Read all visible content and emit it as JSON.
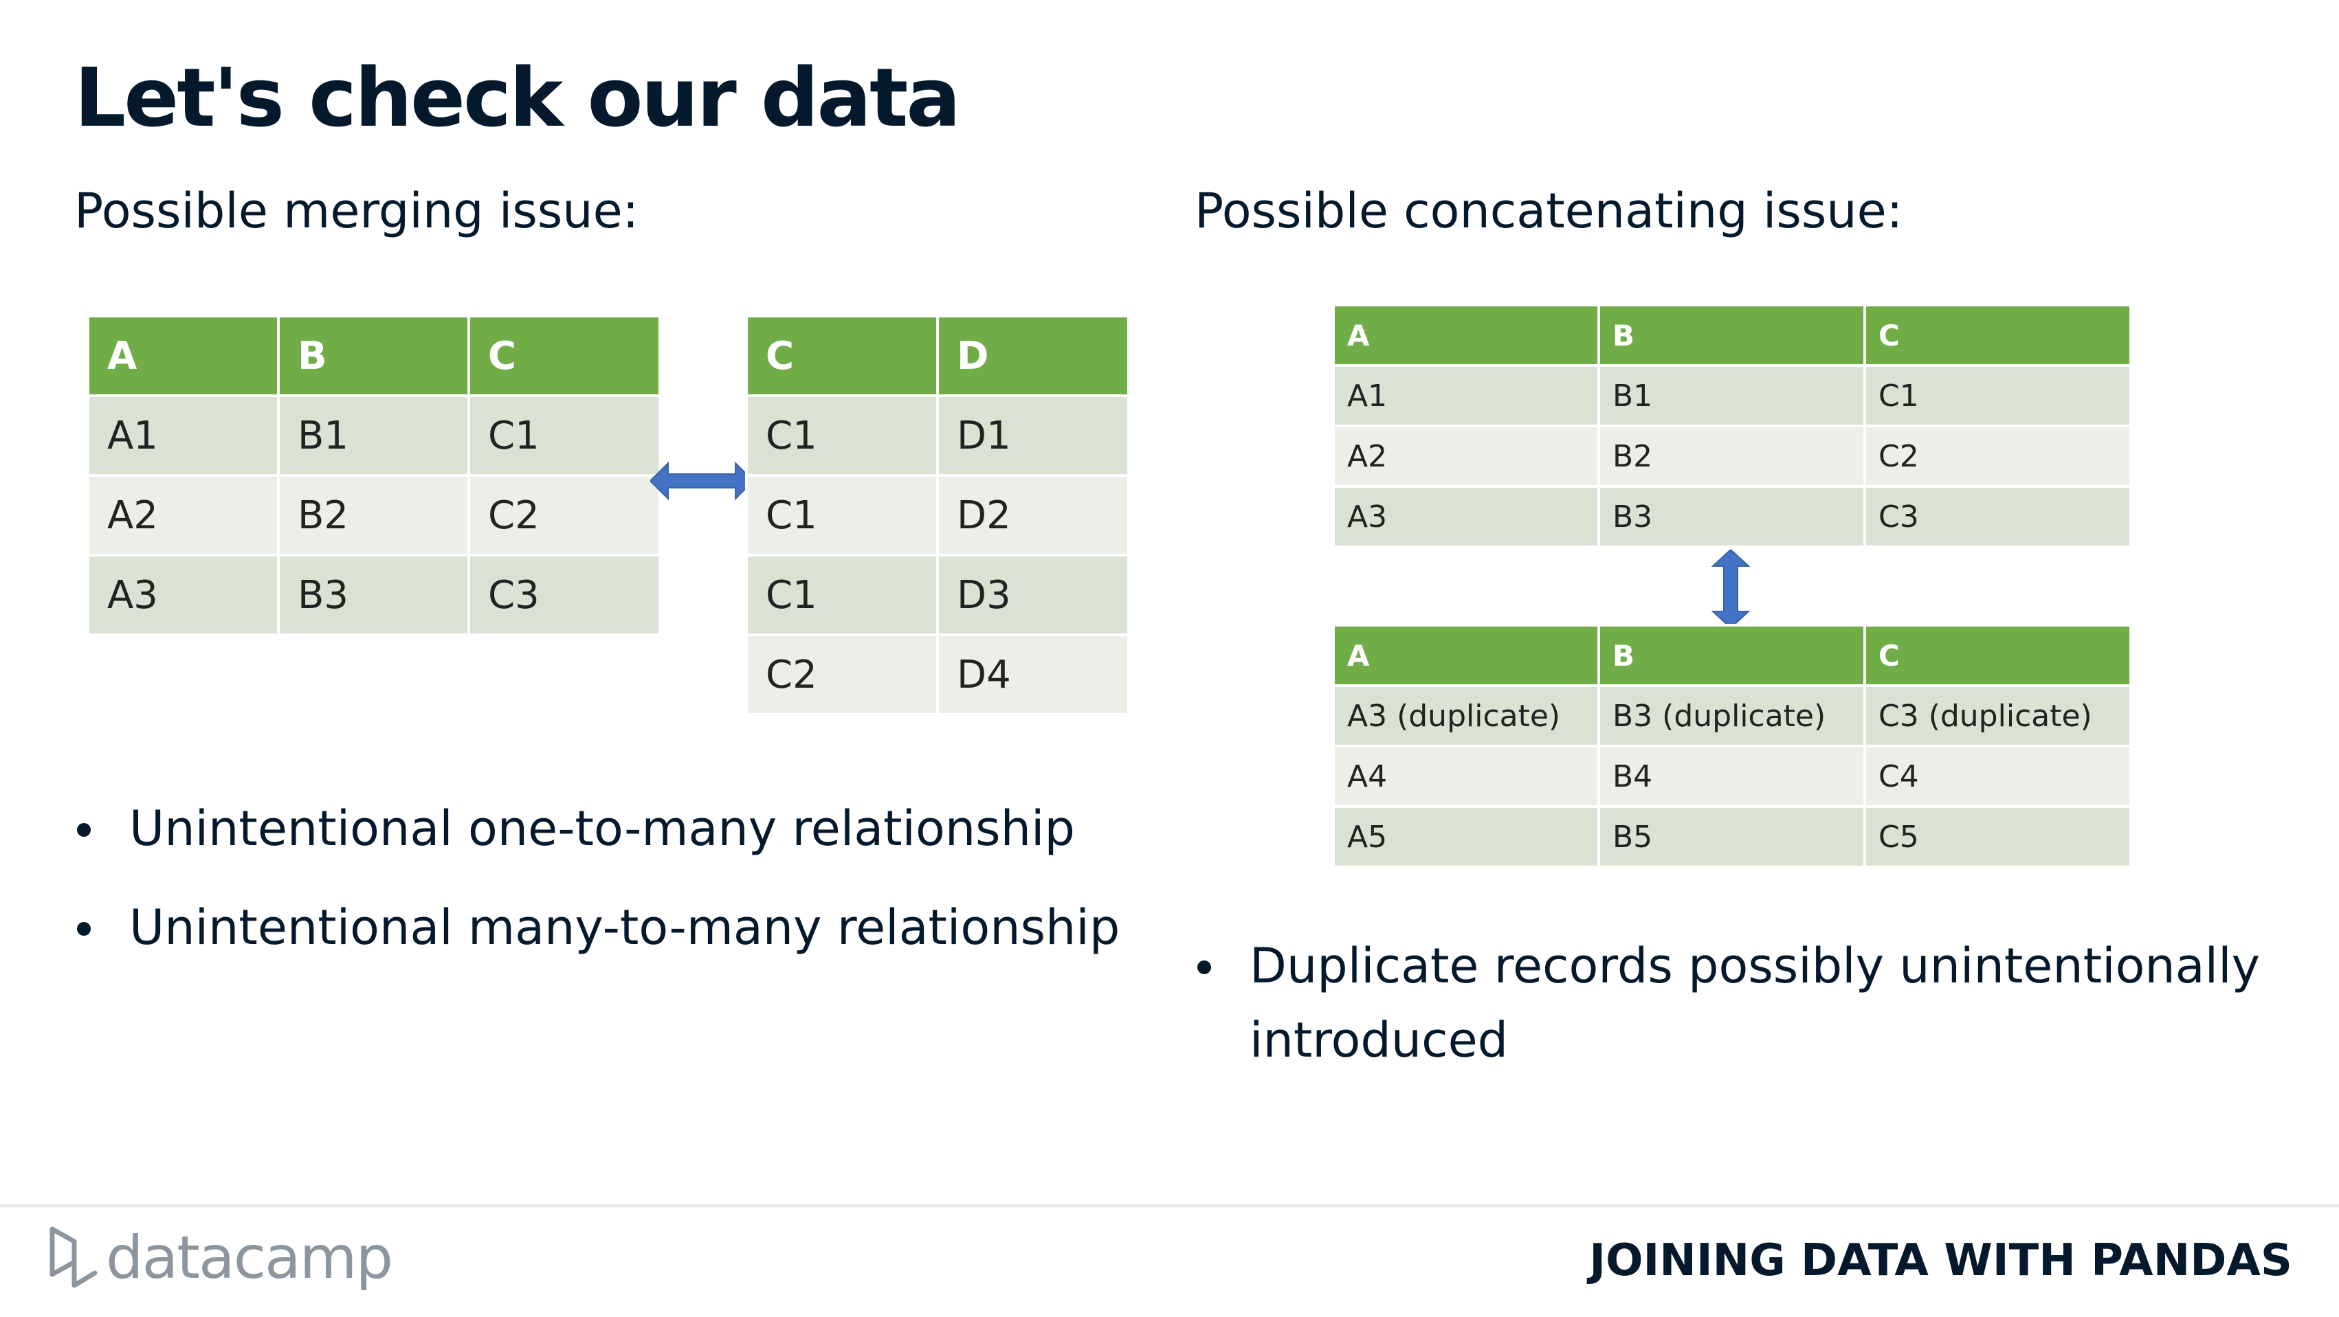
{
  "title": "Let's check our data",
  "left": {
    "heading": "Possible merging issue:",
    "table_left": {
      "headers": [
        "A",
        "B",
        "C"
      ],
      "rows": [
        [
          "A1",
          "B1",
          "C1"
        ],
        [
          "A2",
          "B2",
          "C2"
        ],
        [
          "A3",
          "B3",
          "C3"
        ]
      ]
    },
    "table_right": {
      "headers": [
        "C",
        "D"
      ],
      "rows": [
        [
          "C1",
          "D1"
        ],
        [
          "C1",
          "D2"
        ],
        [
          "C1",
          "D3"
        ],
        [
          "C2",
          "D4"
        ]
      ]
    },
    "bullets": [
      "Unintentional one-to-many relationship",
      "Unintentional many-to-many relationship"
    ]
  },
  "right": {
    "heading": "Possible concatenating issue:",
    "table_top": {
      "headers": [
        "A",
        "B",
        "C"
      ],
      "rows": [
        [
          "A1",
          "B1",
          "C1"
        ],
        [
          "A2",
          "B2",
          "C2"
        ],
        [
          "A3",
          "B3",
          "C3"
        ]
      ]
    },
    "table_bottom": {
      "headers": [
        "A",
        "B",
        "C"
      ],
      "rows": [
        [
          "A3 (duplicate)",
          "B3 (duplicate)",
          "C3 (duplicate)"
        ],
        [
          "A4",
          "B4",
          "C4"
        ],
        [
          "A5",
          "B5",
          "C5"
        ]
      ]
    },
    "bullets": [
      "Duplicate records possibly unintentionally introduced"
    ]
  },
  "footer": {
    "logo_text": "datacamp",
    "course_name": "JOINING DATA WITH PANDAS"
  },
  "colors": {
    "header_green": "#70ad47",
    "row_odd": "#d9e2d3",
    "row_even": "#ebefe7",
    "arrow_blue": "#4472c4",
    "text_dark": "#05192d"
  },
  "icons": [
    "double-arrow-horizontal-icon",
    "double-arrow-vertical-icon",
    "datacamp-logo-icon"
  ]
}
